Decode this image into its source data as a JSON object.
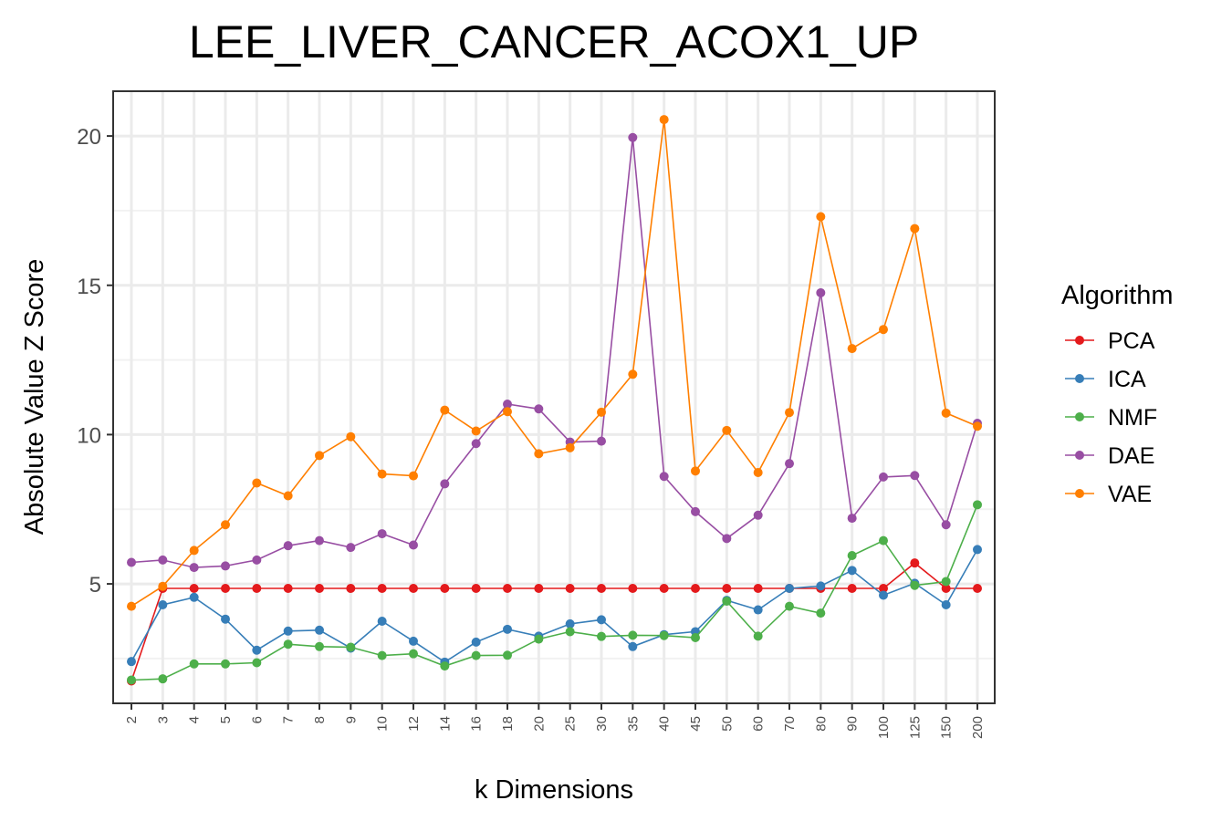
{
  "chart_data": {
    "type": "line",
    "title": "LEE_LIVER_CANCER_ACOX1_UP",
    "xlabel": "k Dimensions",
    "ylabel": "Absolute Value Z Score",
    "categories": [
      "2",
      "3",
      "4",
      "5",
      "6",
      "7",
      "8",
      "9",
      "10",
      "12",
      "14",
      "16",
      "18",
      "20",
      "25",
      "30",
      "35",
      "40",
      "45",
      "50",
      "60",
      "70",
      "80",
      "90",
      "100",
      "125",
      "150",
      "200"
    ],
    "ylim": [
      1.0,
      21.5
    ],
    "yticks": [
      5,
      10,
      15,
      20
    ],
    "grid": true,
    "legend": {
      "title": "Algorithm",
      "position": "right"
    },
    "series": [
      {
        "name": "PCA",
        "color": "#e41a1c",
        "values": [
          1.75,
          4.85,
          4.85,
          4.85,
          4.85,
          4.85,
          4.85,
          4.85,
          4.85,
          4.85,
          4.85,
          4.85,
          4.85,
          4.85,
          4.85,
          4.85,
          4.85,
          4.85,
          4.85,
          4.85,
          4.85,
          4.85,
          4.85,
          4.85,
          4.85,
          5.7,
          4.85,
          4.85
        ]
      },
      {
        "name": "ICA",
        "color": "#377eb8",
        "values": [
          2.4,
          4.3,
          4.55,
          3.82,
          2.78,
          3.42,
          3.45,
          2.85,
          3.75,
          3.08,
          2.38,
          3.05,
          3.48,
          3.25,
          3.66,
          3.8,
          2.9,
          3.3,
          3.4,
          4.45,
          4.13,
          4.85,
          4.93,
          5.45,
          4.62,
          5.02,
          4.3,
          6.15
        ]
      },
      {
        "name": "NMF",
        "color": "#4daf4a",
        "values": [
          1.78,
          1.82,
          2.32,
          2.32,
          2.36,
          2.98,
          2.9,
          2.88,
          2.6,
          2.66,
          2.25,
          2.6,
          2.61,
          3.15,
          3.4,
          3.24,
          3.28,
          3.27,
          3.2,
          4.42,
          3.25,
          4.25,
          4.02,
          5.95,
          6.45,
          4.95,
          5.08,
          7.65
        ]
      },
      {
        "name": "DAE",
        "color": "#984ea3",
        "values": [
          5.72,
          5.8,
          5.55,
          5.6,
          5.8,
          6.28,
          6.45,
          6.22,
          6.68,
          6.3,
          8.35,
          9.7,
          11.02,
          10.86,
          9.75,
          9.78,
          19.95,
          8.6,
          7.42,
          6.52,
          7.3,
          9.03,
          14.75,
          7.2,
          8.58,
          8.63,
          6.98,
          10.38
        ]
      },
      {
        "name": "VAE",
        "color": "#ff7f00",
        "values": [
          4.25,
          4.92,
          6.12,
          6.98,
          8.38,
          7.95,
          9.3,
          9.93,
          8.68,
          8.62,
          10.82,
          10.12,
          10.77,
          9.36,
          9.56,
          10.75,
          12.02,
          20.55,
          8.78,
          10.14,
          8.73,
          10.74,
          17.3,
          12.88,
          13.52,
          16.9,
          10.72,
          10.28
        ]
      }
    ]
  }
}
